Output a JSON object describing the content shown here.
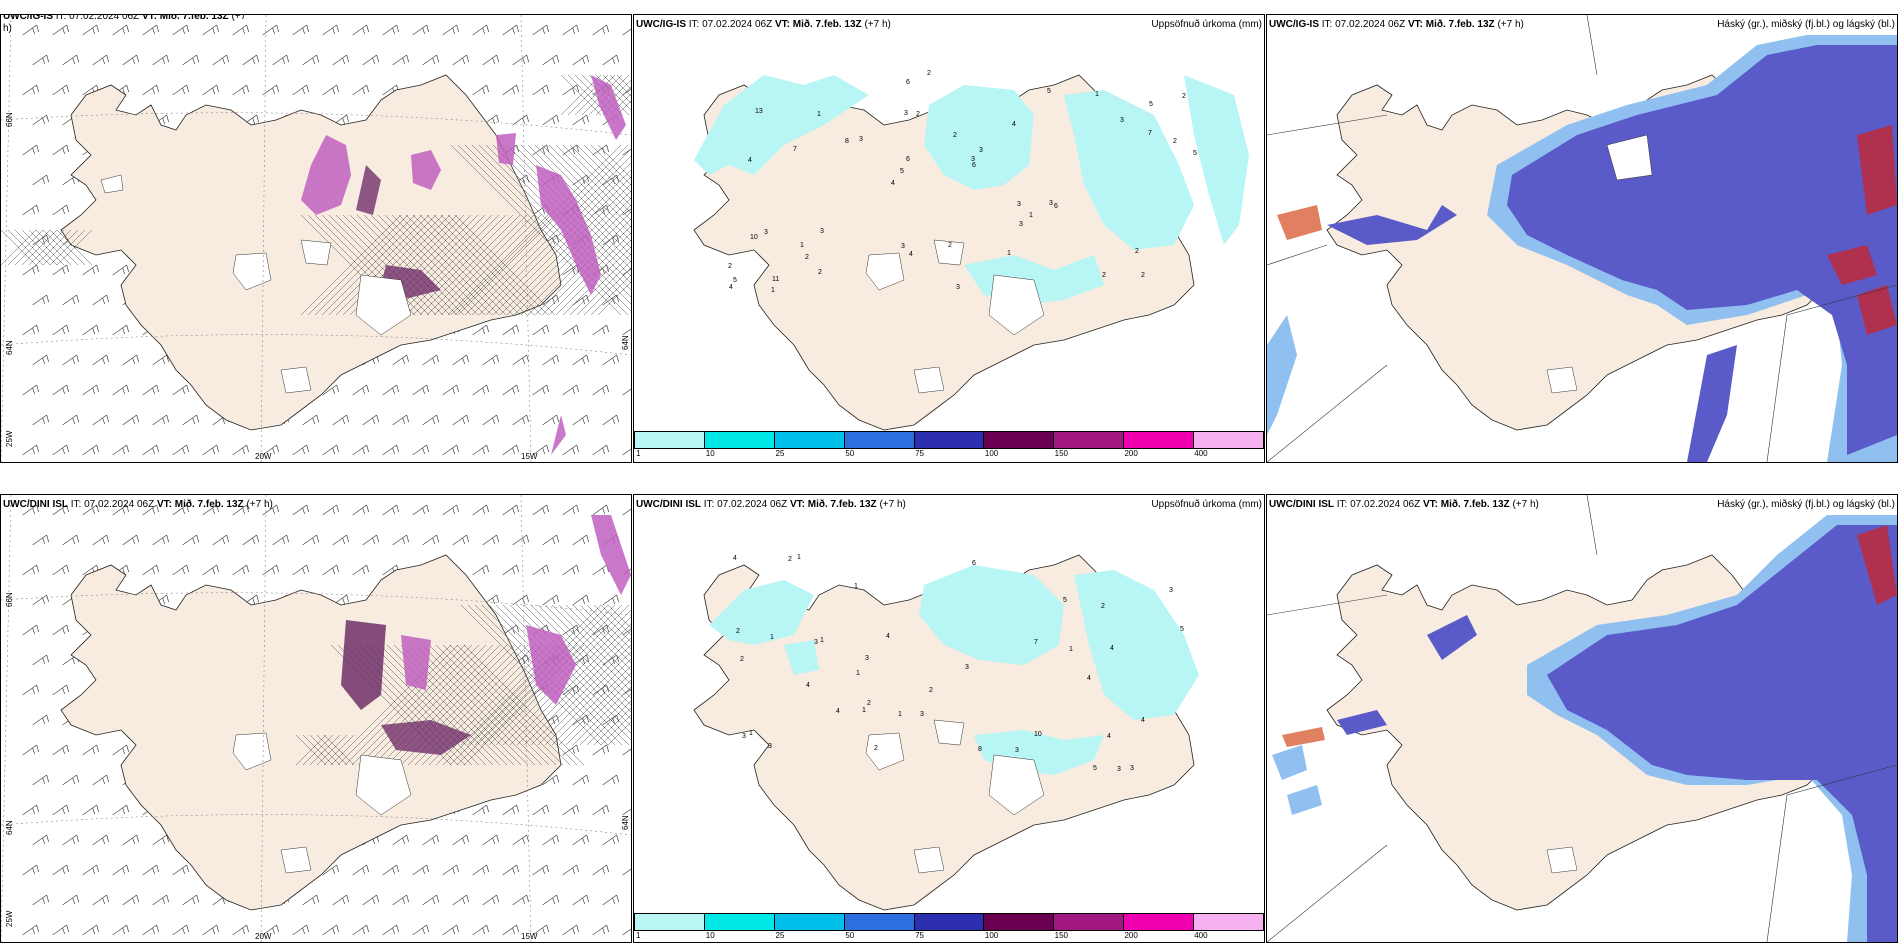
{
  "panels": {
    "top_left": {
      "model": "UWC/IG-IS",
      "it": "IT: 07.02.2024 06Z",
      "vt": "VT: Mið. 7.feb. 13Z",
      "lead": "(+7",
      "lead2": "h)"
    },
    "top_mid": {
      "model": "UWC/IG-IS",
      "it": "IT: 07.02.2024 06Z",
      "vt": "VT: Mið. 7.feb. 13Z",
      "lead": "(+7 h)",
      "field": "Uppsöfnuð úrkoma (mm)"
    },
    "top_right": {
      "model": "UWC/IG-IS",
      "it": "IT: 07.02.2024 06Z",
      "vt": "VT: Mið. 7.feb. 13Z",
      "lead": "(+7 h)",
      "field": "Háský (gr.), miðský (fj.bl.) og lágský (bl.)"
    },
    "bot_left": {
      "model": "UWC/DINI ISL",
      "it": "IT: 07.02.2024 06Z",
      "vt": "VT: Mið. 7.feb. 13Z",
      "lead": "(+7 h)"
    },
    "bot_mid": {
      "model": "UWC/DINI ISL",
      "it": "IT: 07.02.2024 06Z",
      "vt": "VT: Mið. 7.feb. 13Z",
      "lead": "(+7 h)",
      "field": "Uppsöfnuð úrkoma (mm)"
    },
    "bot_right": {
      "model": "UWC/DINI ISL",
      "it": "IT: 07.02.2024 06Z",
      "vt": "VT: Mið. 7.feb. 13Z",
      "lead": "(+7 h)",
      "field": "Háský (gr.), miðský (fj.bl.) og lágský (bl.)"
    }
  },
  "axes": {
    "lat66": "66N",
    "lat64": "64N",
    "lon25": "25W",
    "lon20": "20W",
    "lon15": "15W"
  },
  "colorbar": {
    "labels": [
      "1",
      "10",
      "25",
      "50",
      "75",
      "100",
      "150",
      "200",
      "400"
    ],
    "colors": [
      "#b8f5f5",
      "#00e8e8",
      "#00bfe8",
      "#2b6fe0",
      "#2c2fb0",
      "#6b0050",
      "#a01880",
      "#f000b0",
      "#f5b0f0"
    ]
  },
  "top_precip_labels": [
    "2",
    "4",
    "5",
    "4",
    "4",
    "11",
    "3",
    "2",
    "3",
    "3",
    "2",
    "2",
    "2",
    "3",
    "6",
    "13",
    "6",
    "5",
    "3",
    "7",
    "5",
    "3",
    "6",
    "1",
    "5",
    "3",
    "2",
    "2",
    "3",
    "3",
    "8",
    "7",
    "3",
    "2",
    "2",
    "3",
    "5",
    "4",
    "6",
    "10",
    "3",
    "2",
    "1",
    "1",
    "1",
    "1",
    "4",
    "2",
    "1",
    "2"
  ],
  "bot_precip_labels": [
    "2",
    "3",
    "2",
    "4",
    "3",
    "1",
    "3",
    "1",
    "1",
    "1",
    "4",
    "6",
    "4",
    "5",
    "3",
    "10",
    "3",
    "5",
    "3",
    "4",
    "3",
    "1",
    "3",
    "4",
    "4",
    "7",
    "8",
    "1",
    "2",
    "3",
    "2",
    "1",
    "3",
    "4",
    "5",
    "2",
    "1",
    "1",
    "4",
    "2",
    "2"
  ],
  "colors": {
    "land": "#f8ebdf",
    "land_cloud": "#efdcc8",
    "blue_cloud": "#5a5ac8",
    "light_blue": "#8fc0f0",
    "cyan_precip": "#b8f5f5",
    "purple": "#c060c0",
    "dark_purple": "#70306a",
    "red": "#b03050"
  }
}
